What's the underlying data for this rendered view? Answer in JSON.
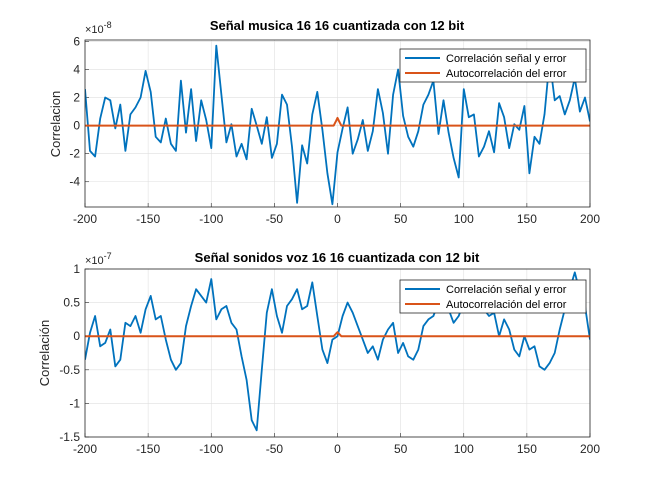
{
  "chart_data": [
    {
      "type": "line",
      "title": "Señal musica 16 16 cuantizada con 12 bit",
      "xlabel": "",
      "ylabel": "Correlacion",
      "exponent_label": "×10",
      "exponent_power": "-8",
      "xlim": [
        -200,
        200
      ],
      "ylim": [
        -5.8,
        6.1
      ],
      "xticks": [
        -200,
        -150,
        -100,
        -50,
        0,
        50,
        100,
        150,
        200
      ],
      "yticks": [
        -4,
        -2,
        0,
        2,
        4,
        6
      ],
      "ytick_labels": [
        "-4",
        "-2",
        "0",
        "2",
        "4",
        "6"
      ],
      "grid": true,
      "legend_position": "top-right",
      "series": [
        {
          "name": "Correlación señal y error",
          "color": "#0072BD",
          "x": [
            -200,
            -196,
            -192,
            -188,
            -184,
            -180,
            -176,
            -172,
            -168,
            -164,
            -160,
            -156,
            -152,
            -148,
            -144,
            -140,
            -136,
            -132,
            -128,
            -124,
            -120,
            -116,
            -112,
            -108,
            -104,
            -100,
            -96,
            -92,
            -88,
            -84,
            -80,
            -76,
            -72,
            -68,
            -64,
            -60,
            -56,
            -52,
            -48,
            -44,
            -40,
            -36,
            -32,
            -28,
            -24,
            -20,
            -16,
            -12,
            -8,
            -4,
            0,
            4,
            8,
            12,
            16,
            20,
            24,
            28,
            32,
            36,
            40,
            44,
            48,
            52,
            56,
            60,
            64,
            68,
            72,
            76,
            80,
            84,
            88,
            92,
            96,
            100,
            104,
            108,
            112,
            116,
            120,
            124,
            128,
            132,
            136,
            140,
            144,
            148,
            152,
            156,
            160,
            164,
            168,
            172,
            176,
            180,
            184,
            188,
            192,
            196,
            200
          ],
          "values": [
            2.6,
            -1.8,
            -2.2,
            0.5,
            2.0,
            1.8,
            -0.2,
            1.5,
            -1.8,
            0.8,
            1.3,
            2.0,
            3.9,
            2.4,
            -0.8,
            -1.2,
            0.5,
            -1.3,
            -1.8,
            3.2,
            -0.5,
            2.6,
            -1.1,
            1.8,
            0.4,
            -1.6,
            5.7,
            2.2,
            -1.2,
            0.1,
            -2.2,
            -1.3,
            -2.4,
            1.2,
            0.0,
            -1.3,
            0.6,
            -2.3,
            -1.3,
            2.2,
            1.5,
            -1.5,
            -5.5,
            -1.4,
            -2.7,
            0.8,
            2.4,
            -0.3,
            -3.4,
            -5.6,
            -1.9,
            -0.2,
            1.3,
            -2.0,
            -1.0,
            0.4,
            -1.8,
            -0.4,
            2.6,
            0.9,
            -2.0,
            2.2,
            4.0,
            0.7,
            -0.8,
            -1.5,
            -0.4,
            1.5,
            2.2,
            3.2,
            -0.6,
            1.8,
            -0.5,
            -2.3,
            -3.7,
            2.6,
            0.6,
            0.8,
            -2.2,
            -1.5,
            -0.4,
            -1.9,
            1.6,
            0.6,
            -1.6,
            0.1,
            -0.3,
            1.4,
            -3.4,
            -0.8,
            -1.3,
            0.8,
            4.7,
            1.8,
            2.1,
            0.8,
            1.8,
            3.4,
            1.0,
            2.0,
            0.3
          ]
        },
        {
          "name": "Autocorrelación del error",
          "color": "#D95319",
          "x": [
            -200,
            -3,
            -1,
            0,
            1,
            3,
            200
          ],
          "values": [
            0,
            0,
            0.35,
            0.55,
            0.35,
            0,
            0
          ]
        }
      ]
    },
    {
      "type": "line",
      "title": "Señal sonidos voz 16 16 cuantizada con 12 bit",
      "xlabel": "",
      "ylabel": "Correlación",
      "exponent_label": "×10",
      "exponent_power": "-7",
      "xlim": [
        -200,
        200
      ],
      "ylim": [
        -1.5,
        1
      ],
      "xticks": [
        -200,
        -150,
        -100,
        -50,
        0,
        50,
        100,
        150,
        200
      ],
      "yticks": [
        -1.5,
        -1,
        -0.5,
        0,
        0.5,
        1
      ],
      "ytick_labels": [
        "-1.5",
        "-1",
        "-0.5",
        "0",
        "0.5",
        "1"
      ],
      "grid": true,
      "legend_position": "top-right",
      "series": [
        {
          "name": "Correlación señal y error",
          "color": "#0072BD",
          "x": [
            -200,
            -196,
            -192,
            -188,
            -184,
            -180,
            -176,
            -172,
            -168,
            -164,
            -160,
            -156,
            -152,
            -148,
            -144,
            -140,
            -136,
            -132,
            -128,
            -124,
            -120,
            -116,
            -112,
            -108,
            -104,
            -100,
            -96,
            -92,
            -88,
            -84,
            -80,
            -76,
            -72,
            -68,
            -64,
            -60,
            -56,
            -52,
            -48,
            -44,
            -40,
            -36,
            -32,
            -28,
            -24,
            -20,
            -16,
            -12,
            -8,
            -4,
            0,
            4,
            8,
            12,
            16,
            20,
            24,
            28,
            32,
            36,
            40,
            44,
            48,
            52,
            56,
            60,
            64,
            68,
            72,
            76,
            80,
            84,
            88,
            92,
            96,
            100,
            104,
            108,
            112,
            116,
            120,
            124,
            128,
            132,
            136,
            140,
            144,
            148,
            152,
            156,
            160,
            164,
            168,
            172,
            176,
            180,
            184,
            188,
            192,
            196,
            200
          ],
          "values": [
            -0.35,
            0.05,
            0.3,
            -0.15,
            -0.1,
            0.1,
            -0.45,
            -0.35,
            0.2,
            0.15,
            0.3,
            0.05,
            0.4,
            0.6,
            0.25,
            0.3,
            -0.05,
            -0.35,
            -0.5,
            -0.4,
            0.15,
            0.45,
            0.7,
            0.6,
            0.5,
            0.85,
            0.25,
            0.4,
            0.45,
            0.2,
            0.1,
            -0.3,
            -0.65,
            -1.25,
            -1.4,
            -0.5,
            0.35,
            0.7,
            0.3,
            0.05,
            0.45,
            0.55,
            0.7,
            0.4,
            0.45,
            0.8,
            0.3,
            -0.2,
            -0.4,
            -0.05,
            0.0,
            0.3,
            0.5,
            0.35,
            0.15,
            -0.05,
            -0.25,
            -0.15,
            -0.35,
            -0.05,
            0.1,
            0.2,
            -0.25,
            -0.1,
            -0.3,
            -0.35,
            -0.2,
            0.15,
            0.25,
            0.3,
            0.5,
            0.7,
            0.4,
            0.2,
            0.3,
            0.5,
            0.8,
            0.55,
            0.45,
            0.4,
            0.3,
            0.35,
            0.0,
            0.25,
            0.1,
            -0.2,
            -0.3,
            0.0,
            -0.2,
            -0.15,
            -0.45,
            -0.5,
            -0.4,
            -0.25,
            0.1,
            0.4,
            0.7,
            0.95,
            0.65,
            0.45,
            -0.05
          ]
        },
        {
          "name": "Autocorrelación del error",
          "color": "#D95319",
          "x": [
            -200,
            -3,
            -1,
            0,
            1,
            3,
            200
          ],
          "values": [
            0,
            0,
            0.04,
            0.06,
            0.04,
            0,
            0
          ]
        }
      ]
    }
  ]
}
